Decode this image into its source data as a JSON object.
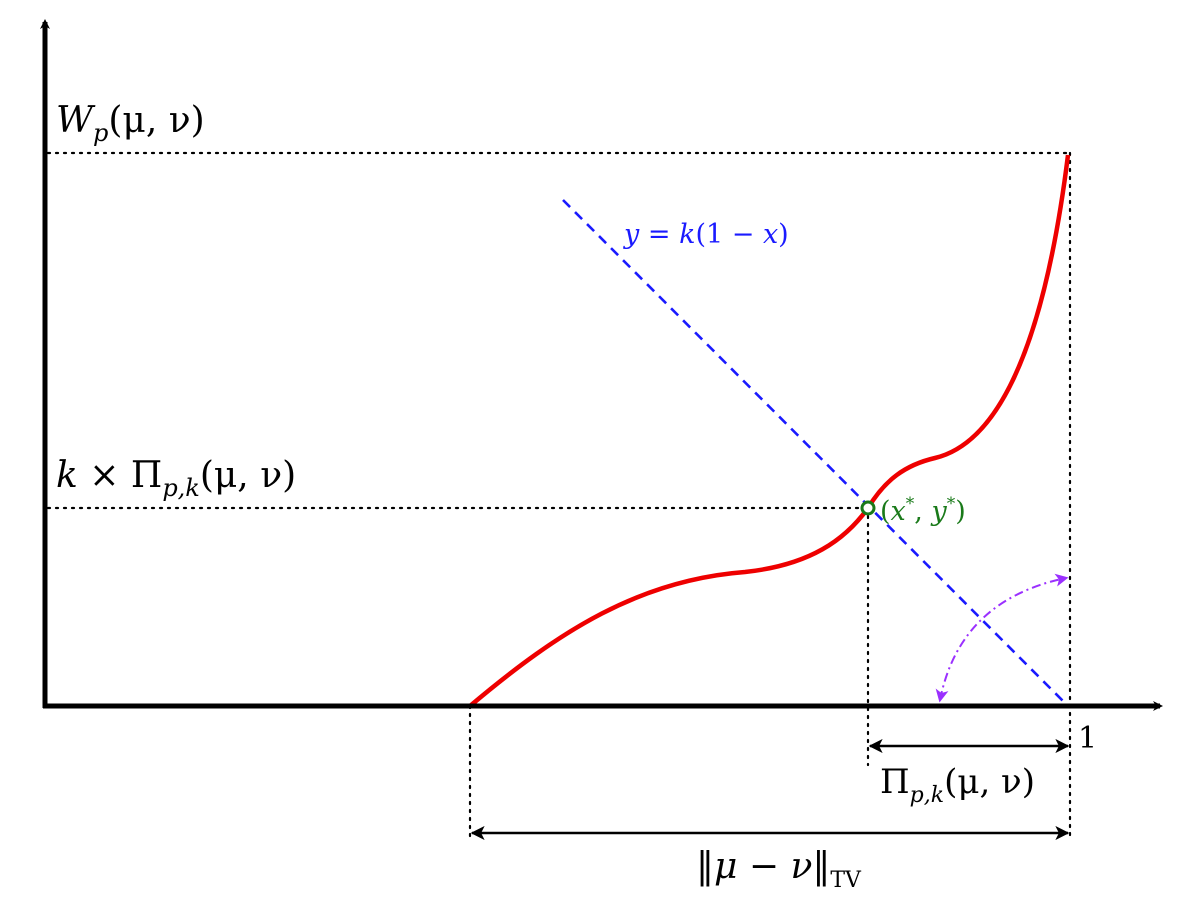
{
  "labels": {
    "wp": {
      "W": "W",
      "p": "p",
      "args": "(μ, ν)"
    },
    "k_pi": {
      "k": "k",
      "times": "×",
      "Pi": "Π",
      "sub": "p,k",
      "args": "(μ, ν)"
    },
    "line_eq": {
      "y": "y",
      "eq": " = ",
      "k": "k",
      "open": "(1 − ",
      "x": "x",
      "close": ")"
    },
    "point": {
      "open": "(",
      "x": "x",
      "xs": "*",
      "comma": ", ",
      "y": "y",
      "ys": "*",
      "close": ")"
    },
    "one": "1",
    "pi_interval": {
      "Pi": "Π",
      "sub": "p,k",
      "args": "(μ, ν)"
    },
    "tv_interval": {
      "norm_open": "‖",
      "mu": "μ",
      "minus": " − ",
      "nu": "ν",
      "norm_close": "‖",
      "sub": "TV"
    }
  },
  "colors": {
    "axis": "#000000",
    "curve": "#ee0000",
    "line": "#1a1aff",
    "point": "#1a7a1a",
    "arc": "#9b30ff",
    "dotted": "#000000"
  }
}
